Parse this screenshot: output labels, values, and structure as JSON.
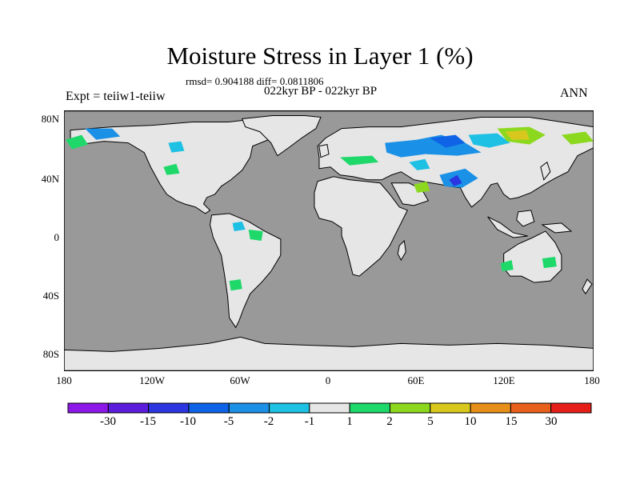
{
  "title": "Moisture Stress in Layer 1 (%)",
  "stats": "rmsd= 0.904188 diff= 0.0811806",
  "period": "022kyr BP - 022kyr BP",
  "experiment": "Expt = teiiw1-teiiw",
  "season": "ANN",
  "axes": {
    "y_ticks": [
      "80N",
      "40N",
      "0",
      "40S",
      "80S"
    ],
    "x_ticks": [
      "180",
      "120W",
      "60W",
      "0",
      "60E",
      "120E",
      "180"
    ]
  },
  "colorbar": {
    "colors": [
      "#8c18e8",
      "#5b1ddc",
      "#2b35e0",
      "#0f63e6",
      "#1a90e6",
      "#1ec0e4",
      "#e6e6e6",
      "#1ed86a",
      "#8cd81e",
      "#d8c81e",
      "#e6901a",
      "#e8601a",
      "#e62018"
    ],
    "labels": [
      "-30",
      "-15",
      "-10",
      "-5",
      "-2",
      "-1",
      "1",
      "2",
      "5",
      "10",
      "15",
      "30"
    ]
  },
  "map_colors": {
    "ocean": "#999999",
    "land": "#e6e6e6"
  }
}
